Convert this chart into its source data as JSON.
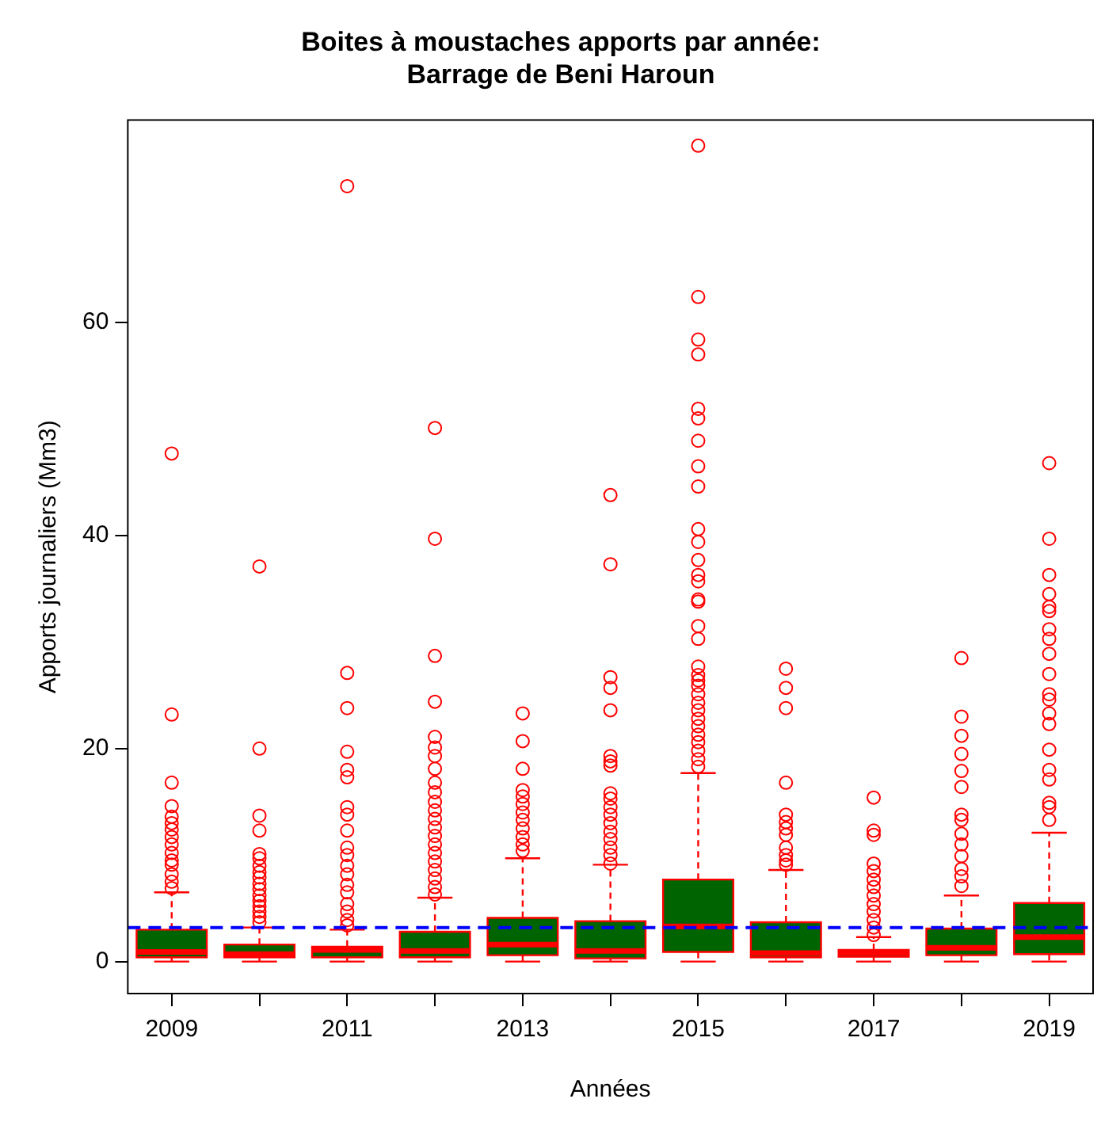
{
  "chart_data": {
    "type": "box",
    "title": "Boites à moustaches apports par année:\nBarrage de Beni Haroun",
    "xlabel": "Années",
    "ylabel": "Apports journaliers (Mm3)",
    "categories": [
      "2009",
      null,
      "2011",
      null,
      "2013",
      null,
      "2015",
      null,
      "2017",
      null,
      "2019"
    ],
    "ylim": [
      -3,
      79
    ],
    "yticks": [
      0,
      20,
      40,
      60
    ],
    "grid": false,
    "legend": false,
    "ref_lines": [
      {
        "axis": "y",
        "value": 3.2,
        "color": "#0000ff",
        "line_style": "dashed"
      }
    ],
    "series": [
      {
        "color": "#006400",
        "boxes": [
          {
            "low": 0,
            "q1": 0.4,
            "median": 0.9,
            "q3": 3.0,
            "high": 6.5,
            "outliers": [
              47.7,
              23.2,
              16.8,
              14.6,
              13.6,
              13.0,
              12.4,
              11.7,
              11.0,
              10.2,
              9.5,
              9.1,
              8.2,
              7.5,
              6.9
            ]
          },
          {
            "low": 0,
            "q1": 0.4,
            "median": 0.7,
            "q3": 1.6,
            "high": 3.2,
            "outliers": [
              37.1,
              20.0,
              13.7,
              12.3,
              10.1,
              9.7,
              9.0,
              8.4,
              7.9,
              7.3,
              6.8,
              6.2,
              5.7,
              5.2,
              4.7,
              4.2,
              3.7
            ]
          },
          {
            "low": 0,
            "q1": 0.4,
            "median": 1.1,
            "q3": 1.4,
            "high": 3.0,
            "outliers": [
              72.8,
              27.1,
              23.8,
              19.7,
              18.0,
              17.3,
              14.5,
              13.8,
              12.3,
              10.7,
              10.0,
              9.0,
              8.2,
              7.2,
              6.5,
              5.4,
              4.7,
              3.9,
              3.4
            ]
          },
          {
            "low": 0,
            "q1": 0.4,
            "median": 1.0,
            "q3": 2.8,
            "high": 6.0,
            "outliers": [
              50.1,
              39.7,
              28.7,
              24.4,
              21.1,
              20.1,
              19.3,
              18.1,
              16.8,
              15.9,
              15.0,
              14.2,
              13.4,
              12.6,
              11.8,
              11.0,
              10.2,
              9.4,
              8.6,
              7.8,
              7.0,
              6.3
            ]
          },
          {
            "low": 0,
            "q1": 0.6,
            "median": 1.6,
            "q3": 4.1,
            "high": 9.7,
            "outliers": [
              23.3,
              20.7,
              18.1,
              16.1,
              15.5,
              14.8,
              14.0,
              13.3,
              12.5,
              11.7,
              11.0,
              10.4
            ]
          },
          {
            "low": 0,
            "q1": 0.3,
            "median": 1.0,
            "q3": 3.8,
            "high": 9.1,
            "outliers": [
              43.8,
              37.3,
              26.7,
              25.7,
              23.6,
              19.3,
              18.8,
              18.4,
              15.8,
              15.3,
              14.5,
              13.8,
              13.0,
              12.2,
              11.5,
              10.7,
              10.0,
              9.2
            ]
          },
          {
            "low": 0,
            "q1": 0.9,
            "median": 3.3,
            "q3": 7.7,
            "high": 17.7,
            "outliers": [
              76.6,
              62.4,
              58.4,
              57.0,
              51.9,
              51.0,
              48.9,
              46.5,
              44.6,
              40.6,
              39.4,
              37.7,
              36.3,
              35.7,
              34.0,
              33.8,
              31.5,
              30.3,
              27.7,
              26.9,
              26.4,
              25.9,
              25.1,
              24.3,
              23.6,
              22.8,
              22.1,
              21.3,
              20.6,
              19.8,
              19.0,
              18.3
            ]
          },
          {
            "low": 0,
            "q1": 0.4,
            "median": 0.8,
            "q3": 3.7,
            "high": 8.6,
            "outliers": [
              27.5,
              25.7,
              23.8,
              16.8,
              13.8,
              13.1,
              12.5,
              11.9,
              10.7,
              10.0,
              9.5,
              9.1
            ]
          },
          {
            "low": 0,
            "q1": 0.45,
            "median": 0.8,
            "q3": 1.1,
            "high": 2.3,
            "outliers": [
              15.4,
              12.3,
              11.9,
              9.2,
              8.5,
              7.7,
              7.0,
              6.2,
              5.4,
              4.7,
              3.9,
              3.2,
              2.5
            ]
          },
          {
            "low": 0,
            "q1": 0.6,
            "median": 1.3,
            "q3": 3.1,
            "high": 6.2,
            "outliers": [
              28.5,
              23.0,
              21.2,
              19.5,
              17.9,
              16.4,
              13.8,
              13.3,
              12.0,
              11.0,
              9.9,
              8.7,
              8.0,
              7.1
            ]
          },
          {
            "low": 0,
            "q1": 0.7,
            "median": 2.3,
            "q3": 5.5,
            "high": 12.1,
            "outliers": [
              46.8,
              39.7,
              36.3,
              34.5,
              33.3,
              32.9,
              31.2,
              30.3,
              28.9,
              27.0,
              25.1,
              24.6,
              23.3,
              22.3,
              19.9,
              18.0,
              17.1,
              14.9,
              14.5,
              13.3
            ]
          }
        ]
      }
    ]
  }
}
